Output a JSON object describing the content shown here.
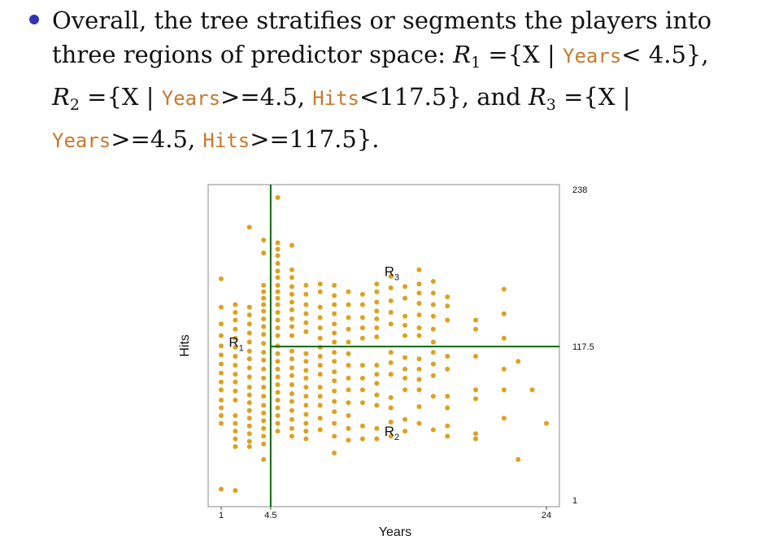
{
  "bullet": {
    "line1": "Overall, the tree stratifies or segments the players into",
    "line2_a": "three regions of predictor space:",
    "R1": "R",
    "R1_sub": "1",
    "eq": "=",
    "set_open": "{X |",
    "set_close": "}",
    "years": "Years",
    "hits": "Hits",
    "r1_cond": "< 4.5",
    "comma": ",",
    "R2": "R",
    "R2_sub": "2",
    "r2_cond_a": ">=4.5,",
    "r2_cond_b": "<117.5",
    "and": ", and",
    "R3": "R",
    "R3_sub": "3",
    "r3_cond_a": ">=4.5,",
    "r3_cond_b": ">=117.5",
    "end": "}."
  },
  "chart_data": {
    "type": "scatter",
    "xlabel": "Years",
    "ylabel": "Hits",
    "x_ticks": [
      "1",
      "4.5",
      "24"
    ],
    "y_ticks": [
      "1",
      "117.5",
      "238"
    ],
    "xlim": [
      1,
      24
    ],
    "ylim": [
      1,
      238
    ],
    "split_years": 4.5,
    "split_hits": 117.5,
    "region_labels": [
      {
        "text": "R",
        "sub": "1"
      },
      {
        "text": "R",
        "sub": "2"
      },
      {
        "text": "R",
        "sub": "3"
      }
    ],
    "colors": {
      "points": "#dca21e",
      "lines": "#0a6a0a",
      "frame": "#888888"
    },
    "points": [
      [
        1,
        7
      ],
      [
        2,
        6
      ],
      [
        1,
        170
      ],
      [
        1,
        148
      ],
      [
        1,
        135
      ],
      [
        1,
        126
      ],
      [
        1,
        118
      ],
      [
        1,
        111
      ],
      [
        1,
        104
      ],
      [
        1,
        97
      ],
      [
        1,
        90
      ],
      [
        1,
        84
      ],
      [
        1,
        76
      ],
      [
        1,
        70
      ],
      [
        1,
        64
      ],
      [
        1,
        58
      ],
      [
        2,
        150
      ],
      [
        2,
        144
      ],
      [
        2,
        138
      ],
      [
        2,
        131
      ],
      [
        2,
        124
      ],
      [
        2,
        117
      ],
      [
        2,
        110
      ],
      [
        2,
        103
      ],
      [
        2,
        96
      ],
      [
        2,
        90
      ],
      [
        2,
        83
      ],
      [
        2,
        76
      ],
      [
        2,
        64
      ],
      [
        2,
        58
      ],
      [
        2,
        52
      ],
      [
        2,
        46
      ],
      [
        2,
        40
      ],
      [
        3,
        210
      ],
      [
        3,
        148
      ],
      [
        3,
        142
      ],
      [
        3,
        135
      ],
      [
        3,
        128
      ],
      [
        3,
        121
      ],
      [
        3,
        114
      ],
      [
        3,
        108
      ],
      [
        3,
        101
      ],
      [
        3,
        94
      ],
      [
        3,
        86
      ],
      [
        3,
        80
      ],
      [
        3,
        74
      ],
      [
        3,
        68
      ],
      [
        3,
        62
      ],
      [
        3,
        56
      ],
      [
        3,
        50
      ],
      [
        3,
        44
      ],
      [
        3,
        40
      ],
      [
        4,
        200
      ],
      [
        4,
        190
      ],
      [
        4,
        165
      ],
      [
        4,
        160
      ],
      [
        4,
        155
      ],
      [
        4,
        150
      ],
      [
        4,
        145
      ],
      [
        4,
        139
      ],
      [
        4,
        133
      ],
      [
        4,
        127
      ],
      [
        4,
        120
      ],
      [
        4,
        113
      ],
      [
        4,
        107
      ],
      [
        4,
        100
      ],
      [
        4,
        93
      ],
      [
        4,
        86
      ],
      [
        4,
        79
      ],
      [
        4,
        72
      ],
      [
        4,
        66
      ],
      [
        4,
        60
      ],
      [
        4,
        54
      ],
      [
        4,
        48
      ],
      [
        4,
        42
      ],
      [
        4,
        30
      ],
      [
        5,
        233
      ],
      [
        5,
        198
      ],
      [
        5,
        193
      ],
      [
        5,
        188
      ],
      [
        5,
        182
      ],
      [
        5,
        176
      ],
      [
        5,
        171
      ],
      [
        5,
        165
      ],
      [
        5,
        160
      ],
      [
        5,
        155
      ],
      [
        5,
        150
      ],
      [
        5,
        144
      ],
      [
        5,
        138
      ],
      [
        5,
        132
      ],
      [
        5,
        126
      ],
      [
        5,
        118
      ],
      [
        5,
        112
      ],
      [
        5,
        106
      ],
      [
        5,
        100
      ],
      [
        5,
        94
      ],
      [
        5,
        88
      ],
      [
        5,
        82
      ],
      [
        5,
        76
      ],
      [
        5,
        70
      ],
      [
        5,
        64
      ],
      [
        5,
        58
      ],
      [
        5,
        52
      ],
      [
        6,
        196
      ],
      [
        6,
        177
      ],
      [
        6,
        171
      ],
      [
        6,
        164
      ],
      [
        6,
        158
      ],
      [
        6,
        152
      ],
      [
        6,
        146
      ],
      [
        6,
        139
      ],
      [
        6,
        133
      ],
      [
        6,
        126
      ],
      [
        6,
        114
      ],
      [
        6,
        108
      ],
      [
        6,
        101
      ],
      [
        6,
        95
      ],
      [
        6,
        88
      ],
      [
        6,
        81
      ],
      [
        6,
        75
      ],
      [
        6,
        68
      ],
      [
        6,
        61
      ],
      [
        6,
        54
      ],
      [
        6,
        48
      ],
      [
        7,
        165
      ],
      [
        7,
        158
      ],
      [
        7,
        150
      ],
      [
        7,
        143
      ],
      [
        7,
        136
      ],
      [
        7,
        129
      ],
      [
        7,
        112
      ],
      [
        7,
        106
      ],
      [
        7,
        99
      ],
      [
        7,
        93
      ],
      [
        7,
        86
      ],
      [
        7,
        79
      ],
      [
        7,
        72
      ],
      [
        7,
        65
      ],
      [
        7,
        58
      ],
      [
        7,
        52
      ],
      [
        7,
        46
      ],
      [
        8,
        166
      ],
      [
        8,
        160
      ],
      [
        8,
        148
      ],
      [
        8,
        140
      ],
      [
        8,
        132
      ],
      [
        8,
        124
      ],
      [
        8,
        117
      ],
      [
        8,
        110
      ],
      [
        8,
        103
      ],
      [
        8,
        96
      ],
      [
        8,
        86
      ],
      [
        8,
        79
      ],
      [
        8,
        72
      ],
      [
        8,
        62
      ],
      [
        8,
        53
      ],
      [
        9,
        165
      ],
      [
        9,
        157
      ],
      [
        9,
        150
      ],
      [
        9,
        143
      ],
      [
        9,
        135
      ],
      [
        9,
        128
      ],
      [
        9,
        121
      ],
      [
        9,
        113
      ],
      [
        9,
        106
      ],
      [
        9,
        98
      ],
      [
        9,
        91
      ],
      [
        9,
        83
      ],
      [
        9,
        75
      ],
      [
        9,
        67
      ],
      [
        9,
        58
      ],
      [
        9,
        48
      ],
      [
        9,
        35
      ],
      [
        10,
        160
      ],
      [
        10,
        150
      ],
      [
        10,
        140
      ],
      [
        10,
        131
      ],
      [
        10,
        121
      ],
      [
        10,
        112
      ],
      [
        10,
        103
      ],
      [
        10,
        93
      ],
      [
        10,
        84
      ],
      [
        10,
        74
      ],
      [
        10,
        64
      ],
      [
        10,
        54
      ],
      [
        10,
        45
      ],
      [
        11,
        158
      ],
      [
        11,
        150
      ],
      [
        11,
        140
      ],
      [
        11,
        132
      ],
      [
        11,
        124
      ],
      [
        11,
        103
      ],
      [
        11,
        93
      ],
      [
        11,
        84
      ],
      [
        11,
        74
      ],
      [
        11,
        56
      ],
      [
        11,
        46
      ],
      [
        12,
        166
      ],
      [
        12,
        160
      ],
      [
        12,
        152
      ],
      [
        12,
        145
      ],
      [
        12,
        139
      ],
      [
        12,
        132
      ],
      [
        12,
        125
      ],
      [
        12,
        103
      ],
      [
        12,
        96
      ],
      [
        12,
        89
      ],
      [
        12,
        80
      ],
      [
        12,
        72
      ],
      [
        12,
        54
      ],
      [
        12,
        46
      ],
      [
        13,
        172
      ],
      [
        13,
        163
      ],
      [
        13,
        153
      ],
      [
        13,
        144
      ],
      [
        13,
        135
      ],
      [
        13,
        113
      ],
      [
        13,
        105
      ],
      [
        13,
        96
      ],
      [
        13,
        78
      ],
      [
        13,
        70
      ],
      [
        13,
        59
      ],
      [
        13,
        48
      ],
      [
        14,
        164
      ],
      [
        14,
        155
      ],
      [
        14,
        141
      ],
      [
        14,
        134
      ],
      [
        14,
        126
      ],
      [
        14,
        109
      ],
      [
        14,
        100
      ],
      [
        14,
        93
      ],
      [
        14,
        84
      ],
      [
        14,
        61
      ],
      [
        14,
        52
      ],
      [
        15,
        177
      ],
      [
        15,
        166
      ],
      [
        15,
        159
      ],
      [
        15,
        151
      ],
      [
        15,
        142
      ],
      [
        15,
        132
      ],
      [
        15,
        126
      ],
      [
        15,
        108
      ],
      [
        15,
        100
      ],
      [
        15,
        92
      ],
      [
        15,
        84
      ],
      [
        15,
        71
      ],
      [
        15,
        58
      ],
      [
        16,
        168
      ],
      [
        16,
        159
      ],
      [
        16,
        150
      ],
      [
        16,
        141
      ],
      [
        16,
        131
      ],
      [
        16,
        121
      ],
      [
        16,
        113
      ],
      [
        16,
        104
      ],
      [
        16,
        95
      ],
      [
        16,
        79
      ],
      [
        16,
        53
      ],
      [
        17,
        156
      ],
      [
        17,
        149
      ],
      [
        17,
        138
      ],
      [
        17,
        110
      ],
      [
        17,
        100
      ],
      [
        17,
        79
      ],
      [
        17,
        70
      ],
      [
        17,
        56
      ],
      [
        17,
        48
      ],
      [
        19,
        138
      ],
      [
        19,
        131
      ],
      [
        19,
        110
      ],
      [
        19,
        84
      ],
      [
        19,
        77
      ],
      [
        19,
        50
      ],
      [
        19,
        46
      ],
      [
        21,
        162
      ],
      [
        21,
        143
      ],
      [
        21,
        124
      ],
      [
        21,
        100
      ],
      [
        21,
        84
      ],
      [
        21,
        62
      ],
      [
        22,
        106
      ],
      [
        22,
        30
      ],
      [
        23,
        84
      ],
      [
        24,
        58
      ]
    ]
  }
}
